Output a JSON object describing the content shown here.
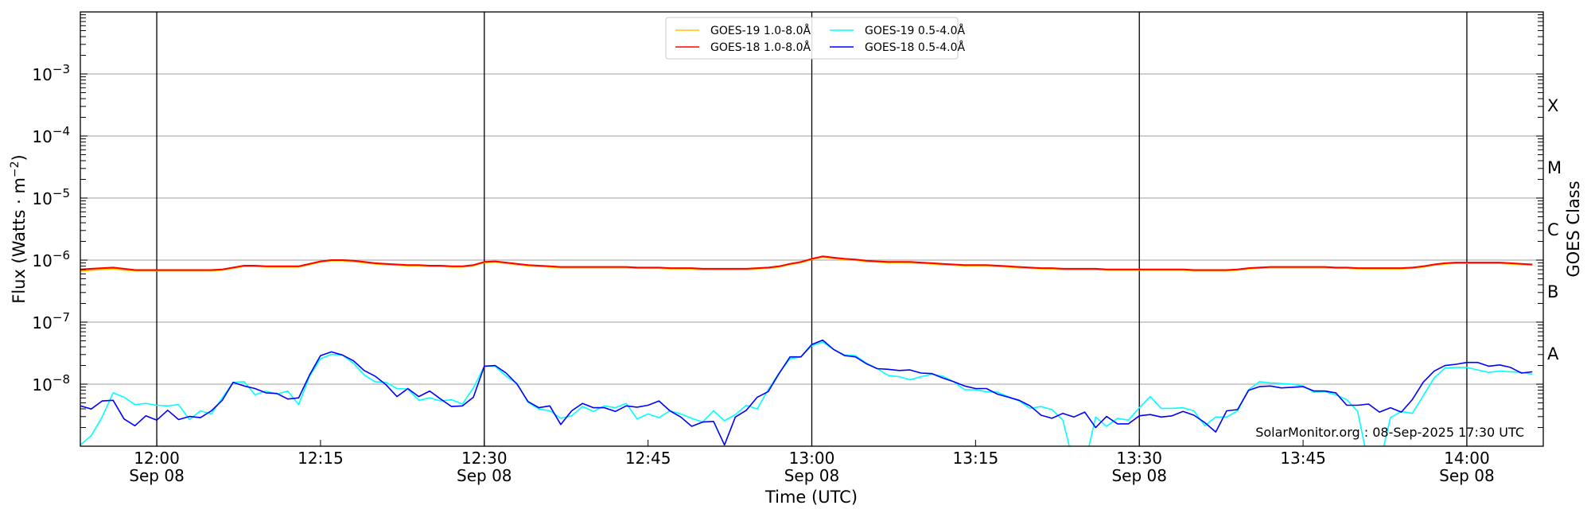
{
  "chart_data": {
    "type": "line",
    "title": "",
    "xlabel": "Time (UTC)",
    "ylabel": {
      "text": "Flux (Watts · m",
      "sup": "−2",
      "close": ")"
    },
    "right_label": "GOES Class",
    "y_scale": "log",
    "ylim": [
      1e-09,
      0.01
    ],
    "xlim": [
      "11:53",
      "14:07"
    ],
    "x_start": "11:53",
    "x_step_minutes": 1,
    "value_units": "log10(W m^-2)",
    "grid": "horizontal at each decade; vertical lines at each half hour",
    "y_ticks": [
      {
        "value": -8,
        "base": "10",
        "exp": "−8"
      },
      {
        "value": -7,
        "base": "10",
        "exp": "−7"
      },
      {
        "value": -6,
        "base": "10",
        "exp": "−6"
      },
      {
        "value": -5,
        "base": "10",
        "exp": "−5"
      },
      {
        "value": -4,
        "base": "10",
        "exp": "−4"
      },
      {
        "value": -3,
        "base": "10",
        "exp": "−3"
      }
    ],
    "x_ticks": [
      {
        "minute": 0,
        "time": "12:00",
        "date": "Sep 08"
      },
      {
        "minute": 15,
        "time": "12:15",
        "date": ""
      },
      {
        "minute": 30,
        "time": "12:30",
        "date": "Sep 08"
      },
      {
        "minute": 45,
        "time": "12:45",
        "date": ""
      },
      {
        "minute": 60,
        "time": "13:00",
        "date": "Sep 08"
      },
      {
        "minute": 75,
        "time": "13:15",
        "date": ""
      },
      {
        "minute": 90,
        "time": "13:30",
        "date": "Sep 08"
      },
      {
        "minute": 105,
        "time": "13:45",
        "date": ""
      },
      {
        "minute": 120,
        "time": "14:00",
        "date": "Sep 08"
      }
    ],
    "goes_classes": [
      {
        "label": "X",
        "log_center": -3.5
      },
      {
        "label": "M",
        "log_center": -4.5
      },
      {
        "label": "C",
        "log_center": -5.5
      },
      {
        "label": "B",
        "log_center": -6.5
      },
      {
        "label": "A",
        "log_center": -7.5
      }
    ],
    "legend_position": "top-center",
    "series": [
      {
        "name": "GOES-19 1.0-8.0Å",
        "color": "#ffc400",
        "values": [
          -6.18,
          -6.16,
          -6.15,
          -6.14,
          -6.16,
          -6.17,
          -6.17,
          -6.17,
          -6.17,
          -6.17,
          -6.17,
          -6.17,
          -6.17,
          -6.16,
          -6.13,
          -6.1,
          -6.1,
          -6.11,
          -6.11,
          -6.11,
          -6.11,
          -6.07,
          -6.03,
          -6.01,
          -6.01,
          -6.02,
          -6.04,
          -6.06,
          -6.07,
          -6.08,
          -6.09,
          -6.09,
          -6.1,
          -6.1,
          -6.11,
          -6.11,
          -6.09,
          -6.04,
          -6.03,
          -6.05,
          -6.07,
          -6.09,
          -6.1,
          -6.11,
          -6.12,
          -6.12,
          -6.12,
          -6.12,
          -6.12,
          -6.12,
          -6.12,
          -6.13,
          -6.13,
          -6.13,
          -6.14,
          -6.14,
          -6.14,
          -6.15,
          -6.15,
          -6.15,
          -6.15,
          -6.15,
          -6.14,
          -6.13,
          -6.11,
          -6.07,
          -6.04,
          -5.99,
          -5.95,
          -5.97,
          -5.99,
          -6.0,
          -6.02,
          -6.03,
          -6.04,
          -6.04,
          -6.04,
          -6.05,
          -6.06,
          -6.07,
          -6.08,
          -6.09,
          -6.09,
          -6.09,
          -6.1,
          -6.11,
          -6.12,
          -6.13,
          -6.14,
          -6.14,
          -6.15,
          -6.15,
          -6.15,
          -6.15,
          -6.16,
          -6.16,
          -6.16,
          -6.16,
          -6.16,
          -6.16,
          -6.16,
          -6.16,
          -6.17,
          -6.17,
          -6.17,
          -6.17,
          -6.16,
          -6.14,
          -6.13,
          -6.12,
          -6.12,
          -6.12,
          -6.12,
          -6.12,
          -6.12,
          -6.13,
          -6.13,
          -6.14,
          -6.14,
          -6.14,
          -6.14,
          -6.14,
          -6.13,
          -6.11,
          -6.08,
          -6.06,
          -6.05,
          -6.05,
          -6.05,
          -6.05,
          -6.05,
          -6.06,
          -6.07,
          -6.08
        ]
      },
      {
        "name": "GOES-18 1.0-8.0Å",
        "color": "#ff0000",
        "values": [
          -6.15,
          -6.14,
          -6.13,
          -6.12,
          -6.14,
          -6.16,
          -6.16,
          -6.16,
          -6.16,
          -6.16,
          -6.16,
          -6.16,
          -6.16,
          -6.15,
          -6.12,
          -6.09,
          -6.09,
          -6.1,
          -6.1,
          -6.1,
          -6.1,
          -6.06,
          -6.02,
          -6.0,
          -6.0,
          -6.01,
          -6.03,
          -6.05,
          -6.06,
          -6.07,
          -6.08,
          -6.08,
          -6.09,
          -6.09,
          -6.1,
          -6.1,
          -6.08,
          -6.03,
          -6.02,
          -6.04,
          -6.06,
          -6.08,
          -6.09,
          -6.1,
          -6.11,
          -6.11,
          -6.11,
          -6.11,
          -6.11,
          -6.11,
          -6.11,
          -6.12,
          -6.12,
          -6.12,
          -6.13,
          -6.13,
          -6.13,
          -6.14,
          -6.14,
          -6.14,
          -6.14,
          -6.14,
          -6.13,
          -6.12,
          -6.1,
          -6.06,
          -6.03,
          -5.98,
          -5.94,
          -5.96,
          -5.98,
          -5.99,
          -6.01,
          -6.02,
          -6.03,
          -6.03,
          -6.03,
          -6.04,
          -6.05,
          -6.06,
          -6.07,
          -6.08,
          -6.08,
          -6.08,
          -6.09,
          -6.1,
          -6.11,
          -6.12,
          -6.13,
          -6.13,
          -6.14,
          -6.14,
          -6.14,
          -6.14,
          -6.15,
          -6.15,
          -6.15,
          -6.15,
          -6.15,
          -6.15,
          -6.15,
          -6.15,
          -6.16,
          -6.16,
          -6.16,
          -6.16,
          -6.15,
          -6.13,
          -6.12,
          -6.11,
          -6.11,
          -6.11,
          -6.11,
          -6.11,
          -6.11,
          -6.12,
          -6.12,
          -6.13,
          -6.13,
          -6.13,
          -6.13,
          -6.13,
          -6.12,
          -6.1,
          -6.07,
          -6.05,
          -6.04,
          -6.04,
          -6.04,
          -6.04,
          -6.04,
          -6.05,
          -6.06,
          -6.07
        ]
      },
      {
        "name": "GOES-19 0.5-4.0Å",
        "color": "#00ffff",
        "values": [
          -8.98,
          -8.83,
          -8.53,
          -8.14,
          -8.21,
          -8.33,
          -8.31,
          -8.34,
          -8.35,
          -8.33,
          -8.57,
          -8.43,
          -8.48,
          -8.22,
          -7.97,
          -7.96,
          -8.17,
          -8.11,
          -8.16,
          -8.11,
          -8.33,
          -7.87,
          -7.59,
          -7.52,
          -7.53,
          -7.66,
          -7.85,
          -7.96,
          -7.97,
          -8.07,
          -8.08,
          -8.26,
          -8.22,
          -8.27,
          -8.25,
          -8.32,
          -8.06,
          -7.71,
          -7.71,
          -7.87,
          -7.99,
          -8.29,
          -8.4,
          -8.43,
          -8.55,
          -8.51,
          -8.36,
          -8.44,
          -8.35,
          -8.38,
          -8.31,
          -8.56,
          -8.48,
          -8.54,
          -8.43,
          -8.48,
          -8.55,
          -8.61,
          -8.43,
          -8.59,
          -8.49,
          -8.34,
          -8.4,
          -8.09,
          -7.82,
          -7.59,
          -7.56,
          -7.38,
          -7.32,
          -7.44,
          -7.53,
          -7.54,
          -7.66,
          -7.75,
          -7.86,
          -7.88,
          -7.93,
          -7.88,
          -7.84,
          -7.87,
          -7.96,
          -8.09,
          -8.09,
          -8.12,
          -8.13,
          -8.2,
          -8.27,
          -8.39,
          -8.36,
          -8.41,
          -8.58,
          -9.3,
          -9.3,
          -8.53,
          -8.68,
          -8.55,
          -8.58,
          -8.38,
          -8.2,
          -8.39,
          -8.39,
          -8.38,
          -8.43,
          -8.67,
          -8.53,
          -8.53,
          -8.43,
          -8.09,
          -7.96,
          -7.98,
          -7.99,
          -8.0,
          -8.03,
          -8.13,
          -8.12,
          -8.17,
          -8.25,
          -8.44,
          -9.3,
          -9.3,
          -8.54,
          -8.44,
          -8.47,
          -8.19,
          -7.9,
          -7.74,
          -7.73,
          -7.73,
          -7.77,
          -7.81,
          -7.79,
          -7.8,
          -7.81,
          -7.84
        ]
      },
      {
        "name": "GOES-18 0.5-4.0Å",
        "color": "#0000ff",
        "values": [
          -8.35,
          -8.4,
          -8.27,
          -8.26,
          -8.56,
          -8.67,
          -8.51,
          -8.58,
          -8.42,
          -8.57,
          -8.52,
          -8.54,
          -8.43,
          -8.26,
          -7.97,
          -8.03,
          -8.07,
          -8.14,
          -8.15,
          -8.24,
          -8.22,
          -7.85,
          -7.54,
          -7.48,
          -7.53,
          -7.62,
          -7.78,
          -7.87,
          -8.01,
          -8.2,
          -8.07,
          -8.2,
          -8.11,
          -8.24,
          -8.36,
          -8.35,
          -8.21,
          -7.71,
          -7.7,
          -7.82,
          -8.0,
          -8.28,
          -8.38,
          -8.35,
          -8.65,
          -8.43,
          -8.31,
          -8.38,
          -8.38,
          -8.44,
          -8.35,
          -8.37,
          -8.34,
          -8.27,
          -8.43,
          -8.53,
          -8.68,
          -8.61,
          -8.6,
          -8.98,
          -8.53,
          -8.42,
          -8.21,
          -8.12,
          -7.83,
          -7.56,
          -7.56,
          -7.36,
          -7.29,
          -7.44,
          -7.54,
          -7.56,
          -7.67,
          -7.75,
          -7.76,
          -7.78,
          -7.77,
          -7.82,
          -7.83,
          -7.9,
          -7.96,
          -8.03,
          -8.07,
          -8.07,
          -8.16,
          -8.21,
          -8.26,
          -8.35,
          -8.5,
          -8.55,
          -8.47,
          -8.53,
          -8.45,
          -8.7,
          -8.52,
          -8.64,
          -8.64,
          -8.51,
          -8.49,
          -8.53,
          -8.51,
          -8.44,
          -8.5,
          -8.62,
          -8.77,
          -8.43,
          -8.41,
          -8.1,
          -8.04,
          -8.03,
          -8.06,
          -8.05,
          -8.04,
          -8.11,
          -8.11,
          -8.14,
          -8.34,
          -8.34,
          -8.32,
          -8.45,
          -8.38,
          -8.45,
          -8.25,
          -7.97,
          -7.79,
          -7.7,
          -7.68,
          -7.65,
          -7.65,
          -7.71,
          -7.69,
          -7.73,
          -7.82,
          -7.8
        ]
      }
    ],
    "watermark": "SolarMonitor.org : 08-Sep-2025 17:30 UTC"
  }
}
